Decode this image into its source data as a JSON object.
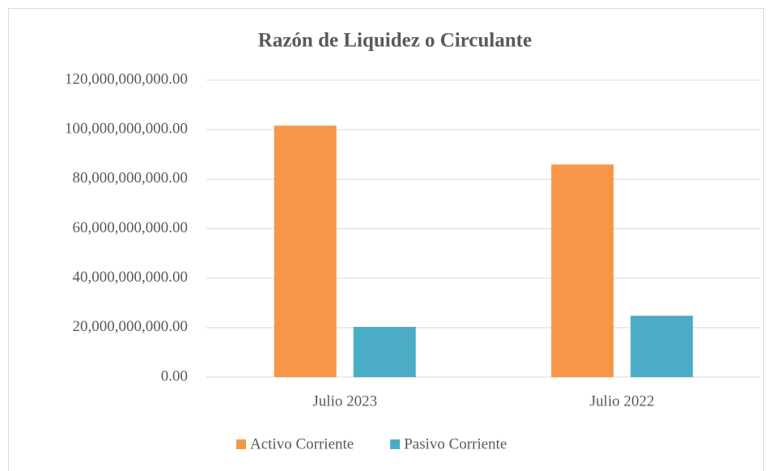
{
  "chart_data": {
    "type": "bar",
    "title": "Razón de Liquidez o Circulante",
    "categories": [
      "Julio 2023",
      "Julio 2022"
    ],
    "series": [
      {
        "name": "Activo Corriente",
        "color": "#f79646",
        "values": [
          101600000000,
          85900000000
        ]
      },
      {
        "name": "Pasivo Corriente",
        "color": "#4bacc6",
        "values": [
          20300000000,
          24800000000
        ]
      }
    ],
    "ylim": [
      0,
      120000000000
    ],
    "yticks": [
      {
        "value": 0,
        "label": "0.00"
      },
      {
        "value": 20000000000,
        "label": "20,000,000,000.00"
      },
      {
        "value": 40000000000,
        "label": "40,000,000,000.00"
      },
      {
        "value": 60000000000,
        "label": "60,000,000,000.00"
      },
      {
        "value": 80000000000,
        "label": "80,000,000,000.00"
      },
      {
        "value": 100000000000,
        "label": "100,000,000,000.00"
      },
      {
        "value": 120000000000,
        "label": "120,000,000,000.00"
      }
    ],
    "grid": true,
    "legend": "bottom"
  }
}
